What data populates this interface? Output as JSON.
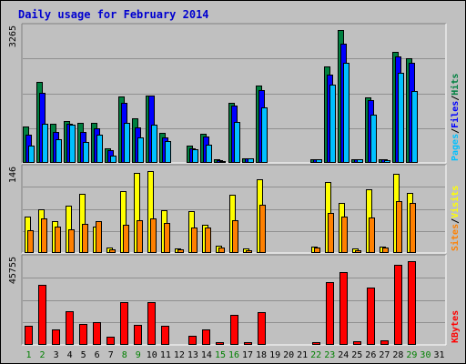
{
  "title": "Daily usage for February 2014",
  "colors": {
    "background": "#c0c0c0",
    "hits": "#008040",
    "files": "#0000ff",
    "pages": "#00c0ff",
    "visits": "#ffff00",
    "sites": "#ff8000",
    "kbytes": "#ff0000",
    "weekday_label": "#000000",
    "weekend_label": "#008000",
    "title": "#0000d0"
  },
  "chart_data": [
    {
      "type": "bar",
      "panel": "top",
      "ymax_label": "3265",
      "ylim": [
        0,
        3265
      ],
      "categories": [
        "1",
        "2",
        "3",
        "4",
        "5",
        "6",
        "7",
        "8",
        "9",
        "10",
        "11",
        "12",
        "13",
        "14",
        "15",
        "16",
        "17",
        "18",
        "19",
        "20",
        "21",
        "22",
        "23",
        "24",
        "25",
        "26",
        "27",
        "28",
        "29",
        "30",
        "31"
      ],
      "weekend_days": [
        "1",
        "2",
        "8",
        "9",
        "15",
        "16",
        "22",
        "23",
        "29",
        "30"
      ],
      "legend": [
        {
          "text": "Hits",
          "color_key": "hits"
        },
        {
          "text": "Files",
          "color_key": "files"
        },
        {
          "text": "Pages",
          "color_key": "pages"
        }
      ],
      "legend_sep": "/",
      "series": [
        {
          "name": "Hits",
          "color_key": "hits",
          "values": [
            880,
            1940,
            940,
            1000,
            960,
            970,
            340,
            1600,
            1080,
            1630,
            720,
            20,
            420,
            700,
            90,
            1450,
            120,
            1870,
            0,
            0,
            0,
            90,
            2320,
            3190,
            90,
            1580,
            80,
            2680,
            2520,
            0,
            0
          ]
        },
        {
          "name": "Files",
          "color_key": "files",
          "values": [
            690,
            1680,
            750,
            940,
            740,
            830,
            310,
            1450,
            850,
            1620,
            610,
            10,
            350,
            640,
            70,
            1370,
            120,
            1750,
            0,
            0,
            0,
            90,
            2130,
            2860,
            90,
            1520,
            80,
            2570,
            2420,
            0,
            0
          ]
        },
        {
          "name": "Pages",
          "color_key": "pages",
          "values": [
            420,
            950,
            560,
            920,
            500,
            680,
            170,
            970,
            620,
            920,
            520,
            0,
            320,
            430,
            50,
            980,
            110,
            1330,
            0,
            0,
            0,
            90,
            1880,
            2410,
            80,
            1170,
            70,
            2180,
            1730,
            0,
            0
          ]
        }
      ]
    },
    {
      "type": "bar",
      "panel": "middle",
      "ymax_label": "146",
      "ylim": [
        0,
        146
      ],
      "categories": [
        "1",
        "2",
        "3",
        "4",
        "5",
        "6",
        "7",
        "8",
        "9",
        "10",
        "11",
        "12",
        "13",
        "14",
        "15",
        "16",
        "17",
        "18",
        "19",
        "20",
        "21",
        "22",
        "23",
        "24",
        "25",
        "26",
        "27",
        "28",
        "29",
        "30",
        "31"
      ],
      "legend": [
        {
          "text": "Visits",
          "color_key": "visits"
        },
        {
          "text": "Sites",
          "color_key": "sites"
        }
      ],
      "legend_sep": "/",
      "series": [
        {
          "name": "Visits",
          "color_key": "visits",
          "values": [
            63,
            76,
            55,
            82,
            102,
            45,
            9,
            107,
            138,
            141,
            74,
            8,
            72,
            48,
            13,
            101,
            8,
            127,
            0,
            0,
            0,
            11,
            123,
            87,
            8,
            110,
            11,
            136,
            104,
            0,
            0
          ]
        },
        {
          "name": "Sites",
          "color_key": "sites",
          "values": [
            39,
            59,
            45,
            41,
            51,
            55,
            7,
            48,
            56,
            59,
            52,
            6,
            44,
            44,
            10,
            57,
            5,
            83,
            0,
            0,
            0,
            9,
            69,
            63,
            5,
            61,
            9,
            89,
            86,
            0,
            0
          ]
        }
      ]
    },
    {
      "type": "bar",
      "panel": "bottom",
      "ymax_label": "45755",
      "ylim": [
        0,
        45755
      ],
      "categories": [
        "1",
        "2",
        "3",
        "4",
        "5",
        "6",
        "7",
        "8",
        "9",
        "10",
        "11",
        "12",
        "13",
        "14",
        "15",
        "16",
        "17",
        "18",
        "19",
        "20",
        "21",
        "22",
        "23",
        "24",
        "25",
        "26",
        "27",
        "28",
        "29",
        "30",
        "31"
      ],
      "legend": [
        {
          "text": "KBytes",
          "color_key": "kbytes"
        }
      ],
      "series": [
        {
          "name": "KBytes",
          "color_key": "kbytes",
          "values": [
            10200,
            31900,
            8000,
            17800,
            11000,
            11800,
            4500,
            22400,
            10600,
            22800,
            10300,
            500,
            4700,
            8200,
            1400,
            16100,
            1600,
            17500,
            0,
            0,
            0,
            1500,
            33100,
            38500,
            1800,
            30400,
            2300,
            42400,
            44300,
            0,
            0
          ]
        }
      ]
    }
  ]
}
